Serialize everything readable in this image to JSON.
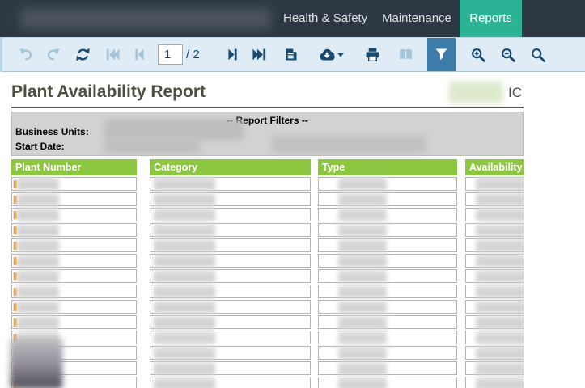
{
  "nav": {
    "tabs": [
      {
        "label": "Health & Safety",
        "active": false
      },
      {
        "label": "Maintenance",
        "active": false
      },
      {
        "label": "Reports",
        "active": true
      }
    ]
  },
  "toolbar": {
    "page_input_value": "1",
    "page_total_label": "/ 2",
    "buttons": [
      {
        "name": "undo",
        "enabled": false
      },
      {
        "name": "redo",
        "enabled": false
      },
      {
        "name": "refresh",
        "enabled": true
      },
      {
        "name": "first-page",
        "enabled": false
      },
      {
        "name": "prev-page",
        "enabled": false
      },
      {
        "name": "next-page",
        "enabled": true
      },
      {
        "name": "last-page",
        "enabled": true
      },
      {
        "name": "export-document",
        "enabled": true
      },
      {
        "name": "download",
        "enabled": true
      },
      {
        "name": "print",
        "enabled": true
      },
      {
        "name": "publication",
        "enabled": false
      },
      {
        "name": "filter",
        "enabled": true,
        "active": true
      },
      {
        "name": "zoom-in",
        "enabled": true
      },
      {
        "name": "zoom-out",
        "enabled": true
      },
      {
        "name": "search",
        "enabled": true
      }
    ]
  },
  "report": {
    "title": "Plant Availability Report",
    "header_logo_text": "IC",
    "filters_heading": "-- Report Filters --",
    "filter_labels": {
      "business_units": "Business Units:",
      "start_date": "Start Date:"
    },
    "table": {
      "columns": [
        {
          "label": "Plant Number"
        },
        {
          "label": "Category"
        },
        {
          "label": "Type"
        },
        {
          "label": "Availability"
        }
      ],
      "visible_row_count": 14,
      "cells_redacted": true
    }
  },
  "colors": {
    "nav_bg": "#2d3842",
    "accent_teal": "#2ab394",
    "toolbar_bg": "#dfecf5",
    "icon_enabled": "#174a6e",
    "icon_disabled": "#a6c4da",
    "filter_active_bg": "#3d7ca8",
    "table_header_bg": "#8dc63f",
    "title_color": "#4b4f41"
  }
}
